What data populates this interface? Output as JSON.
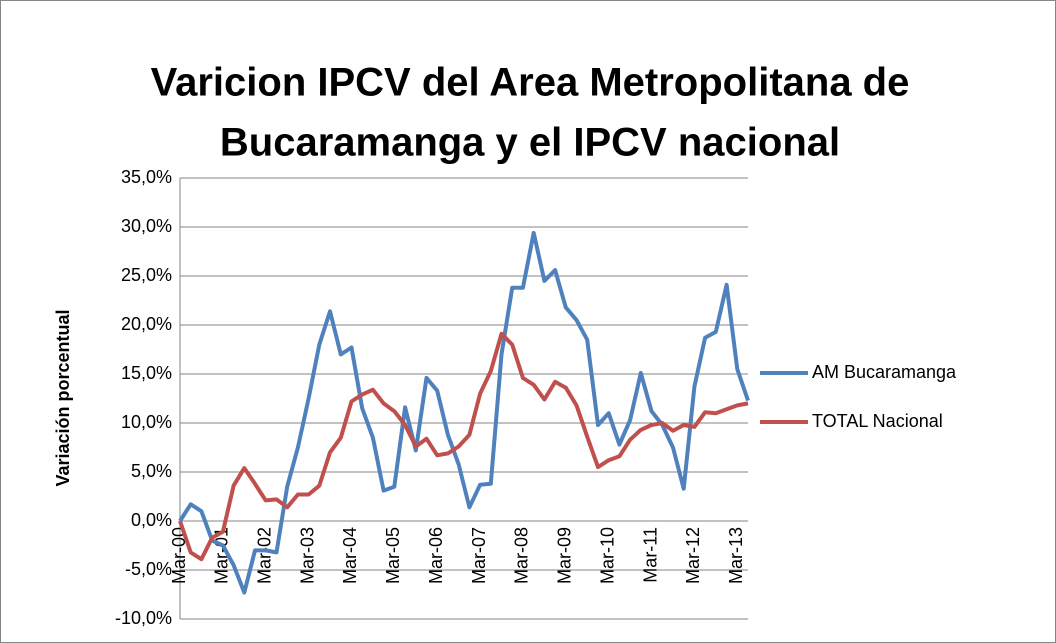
{
  "chart_data": {
    "type": "line",
    "title": "Varicion IPCV del Area Metropolitana  de Bucaramanga y  el IPCV  nacional",
    "title_lines": [
      "Varicion IPCV del Area Metropolitana  de",
      "Bucaramanga y  el IPCV  nacional"
    ],
    "ylabel": "Variación porcentual",
    "categories": [
      "Mar-00",
      null,
      null,
      null,
      "Mar-01",
      null,
      null,
      null,
      "Mar-02",
      null,
      null,
      null,
      "Mar-03",
      null,
      null,
      null,
      "Mar-04",
      null,
      null,
      null,
      "Mar-05",
      null,
      null,
      null,
      "Mar-06",
      null,
      null,
      null,
      "Mar-07",
      null,
      null,
      null,
      "Mar-08",
      null,
      null,
      null,
      "Mar-09",
      null,
      null,
      null,
      "Mar-10",
      null,
      null,
      null,
      "Mar-11",
      null,
      null,
      null,
      "Mar-12",
      null,
      null,
      null,
      "Mar-13",
      null
    ],
    "series": [
      {
        "name": "AM Bucaramanga",
        "color": "#4f81bd",
        "values": [
          0,
          1.7,
          1.0,
          -2,
          -2.5,
          -4.5,
          -7.3,
          -3,
          -3,
          -3.2,
          3.5,
          7.5,
          12.5,
          18,
          21.4,
          17,
          17.7,
          11.5,
          8.5,
          3.1,
          3.5,
          11.6,
          7.2,
          14.6,
          13.3,
          8.8,
          5.8,
          1.4,
          3.7,
          3.8,
          17,
          23.8,
          23.8,
          29.4,
          24.5,
          25.6,
          21.8,
          20.5,
          18.5,
          9.8,
          11,
          7.8,
          10.3,
          15.1,
          11.2,
          9.8,
          7.5,
          3.3,
          13.7,
          18.7,
          19.3,
          24.1,
          15.5,
          12.3
        ]
      },
      {
        "name": "TOTAL Nacional",
        "color": "#c0504d",
        "values": [
          0,
          -3.2,
          -3.9,
          -1.7,
          -1.1,
          3.6,
          5.4,
          3.8,
          2.1,
          2.2,
          1.4,
          2.7,
          2.7,
          3.6,
          7,
          8.5,
          12.2,
          12.9,
          13.4,
          12,
          11.2,
          9.8,
          7.6,
          8.4,
          6.7,
          6.9,
          7.6,
          8.8,
          13,
          15.3,
          19.1,
          18,
          14.6,
          13.9,
          12.4,
          14.2,
          13.6,
          11.8,
          8.6,
          5.5,
          6.2,
          6.6,
          8.3,
          9.3,
          9.8,
          10,
          9.2,
          9.8,
          9.6,
          11.1,
          11,
          11.4,
          11.8,
          12
        ]
      }
    ],
    "ylim": [
      -10,
      35
    ],
    "yticks": [
      {
        "value": -10,
        "label": "-10,0%"
      },
      {
        "value": -5,
        "label": "-5,0%"
      },
      {
        "value": 0,
        "label": "0,0%"
      },
      {
        "value": 5,
        "label": "5,0%"
      },
      {
        "value": 10,
        "label": "10,0%"
      },
      {
        "value": 15,
        "label": "15,0%"
      },
      {
        "value": 20,
        "label": "20,0%"
      },
      {
        "value": 25,
        "label": "25,0%"
      },
      {
        "value": 30,
        "label": "30,0%"
      },
      {
        "value": 35,
        "label": "35,0%"
      }
    ],
    "grid": true,
    "legend": "right"
  }
}
